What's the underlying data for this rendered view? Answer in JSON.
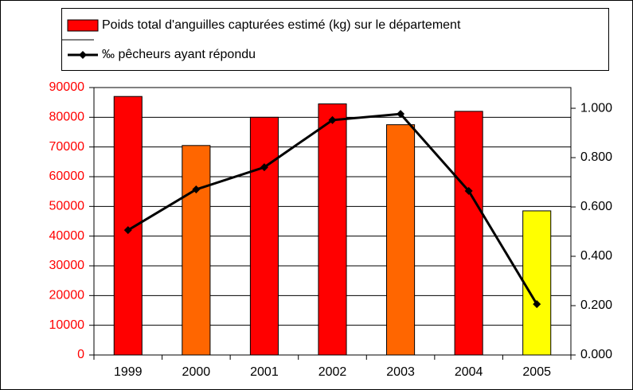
{
  "chart_data": {
    "type": "combo",
    "categories": [
      "1999",
      "2000",
      "2001",
      "2002",
      "2003",
      "2004",
      "2005"
    ],
    "series": [
      {
        "name": "Poids total d'anguilles capturées estimé (kg) sur le département",
        "type": "bar",
        "color": "#ff0000",
        "colors": [
          "#ff0000",
          "#ff6600",
          "#ff0000",
          "#ff0000",
          "#ff6600",
          "#ff0000",
          "#ffff00"
        ],
        "values": [
          87000,
          70500,
          80000,
          84500,
          77500,
          82000,
          48500
        ]
      },
      {
        "name": "‰ pêcheurs ayant répondu",
        "type": "line",
        "color": "#000000",
        "axis": "y2",
        "values": [
          0.506,
          0.671,
          0.761,
          0.952,
          0.977,
          0.665,
          0.206
        ]
      }
    ],
    "ylim": [
      0,
      90000
    ],
    "yticks": [
      0,
      10000,
      20000,
      30000,
      40000,
      50000,
      60000,
      70000,
      80000,
      90000
    ],
    "ytick_color": "#ff0000",
    "y2lim": [
      0,
      1.084
    ],
    "y2ticks": [
      {
        "value": 0,
        "label": "0.000"
      },
      {
        "value": 0.2,
        "label": "0.200"
      },
      {
        "value": 0.4,
        "label": "0.400"
      },
      {
        "value": 0.6,
        "label": "0.600"
      },
      {
        "value": 0.8,
        "label": "0.800"
      },
      {
        "value": 1,
        "label": "1.000"
      }
    ],
    "grid": true
  }
}
